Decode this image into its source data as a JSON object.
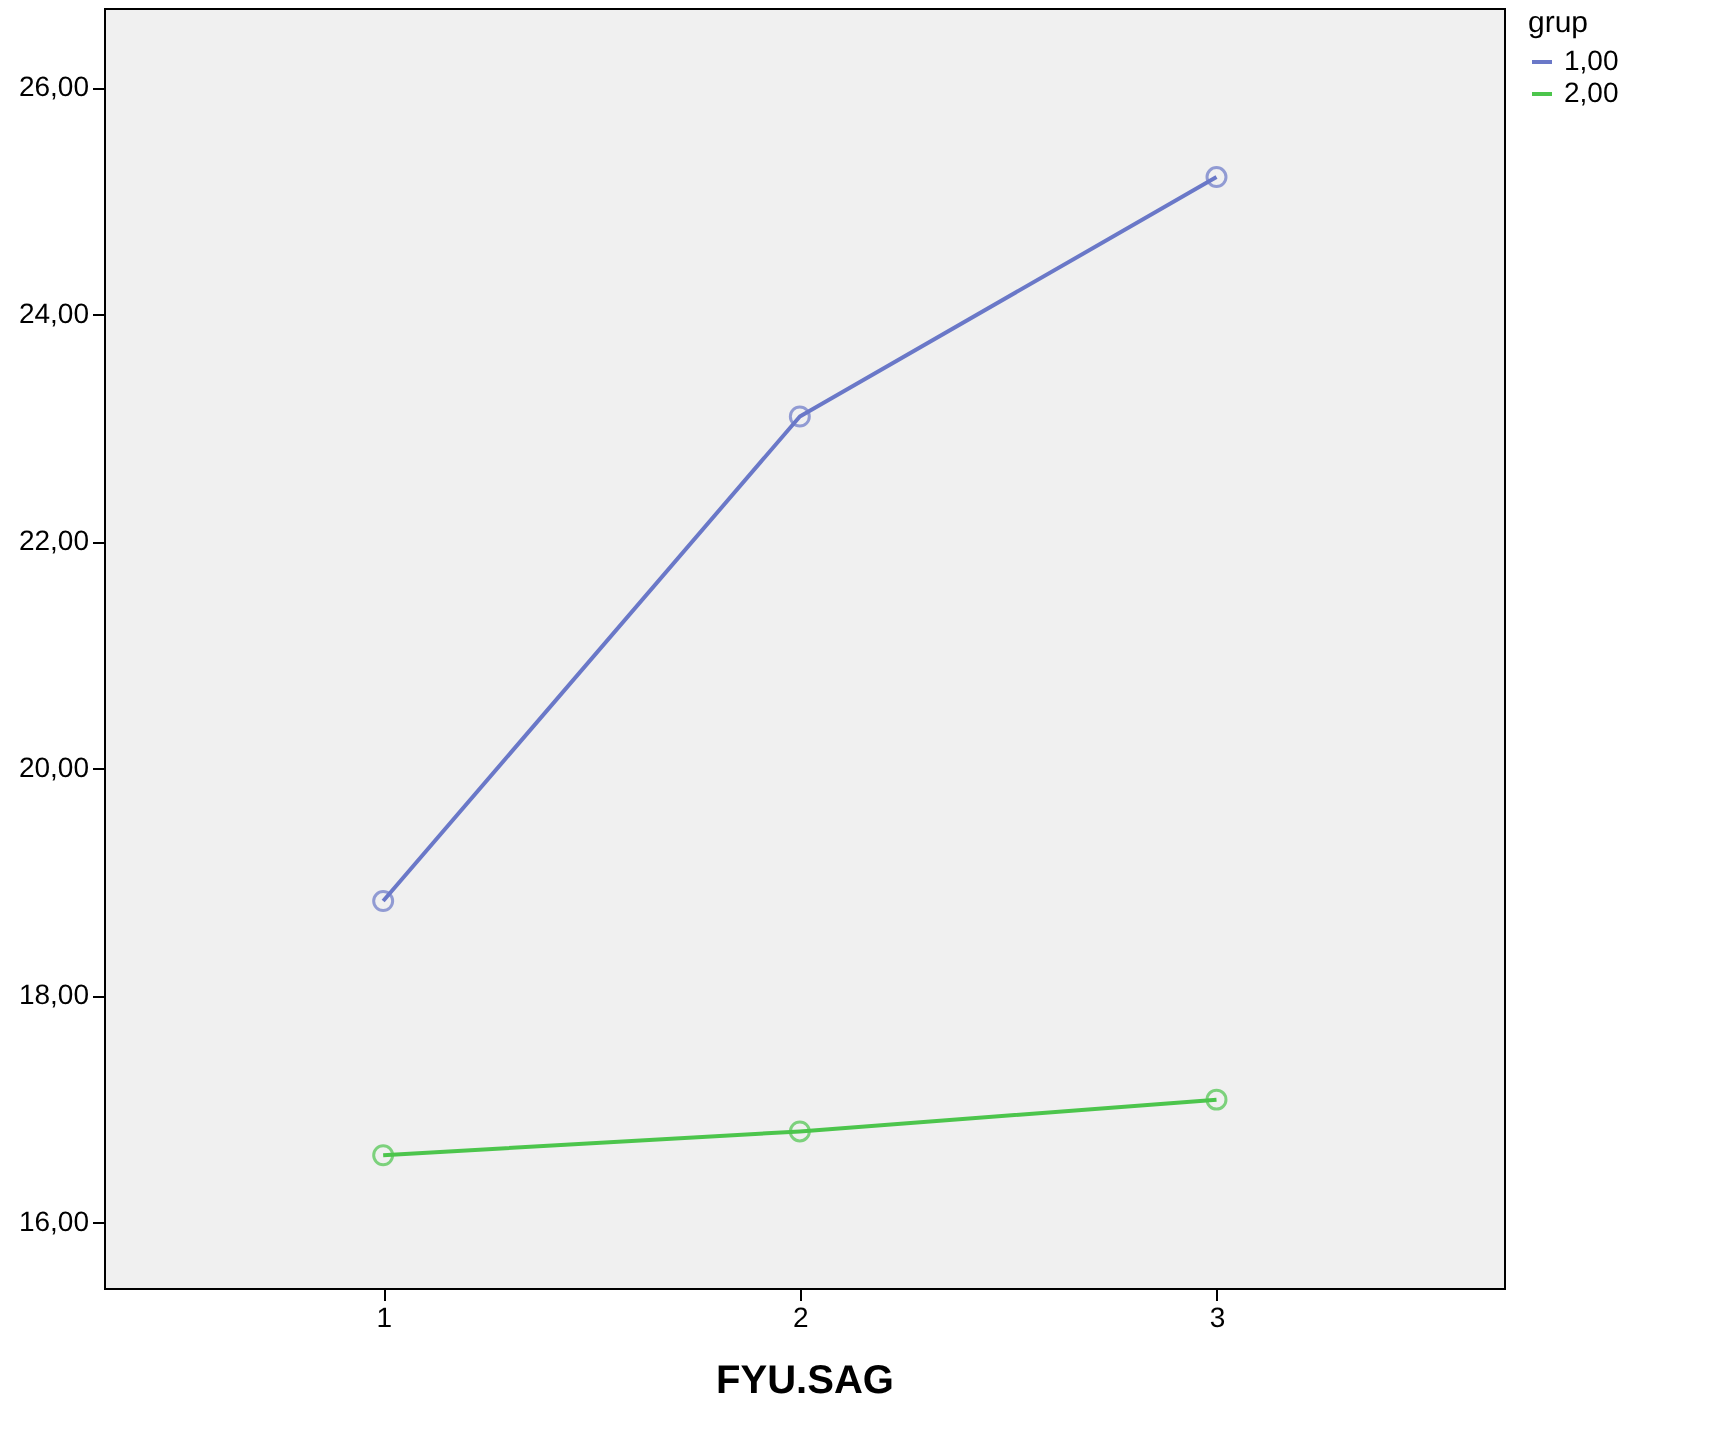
{
  "chart_data": {
    "type": "line",
    "xlabel": "FYU.SAG",
    "legend_title": "grup",
    "x": [
      1,
      2,
      3
    ],
    "series": [
      {
        "name": "1,00",
        "color": "#6a78c8",
        "values": [
          18.83,
          23.1,
          25.21
        ]
      },
      {
        "name": "2,00",
        "color": "#4cc54c",
        "values": [
          16.59,
          16.8,
          17.08
        ]
      }
    ],
    "xlim": [
      0.33,
      3.69
    ],
    "xticks": [
      1,
      2,
      3
    ],
    "ylim": [
      15.42,
      26.7
    ],
    "yticks": [
      {
        "value": 16,
        "label": "16,00"
      },
      {
        "value": 18,
        "label": "18,00"
      },
      {
        "value": 20,
        "label": "20,00"
      },
      {
        "value": 22,
        "label": "22,00"
      },
      {
        "value": 24,
        "label": "24,00"
      },
      {
        "value": 26,
        "label": "26,00"
      }
    ],
    "grid": false,
    "legend": "top right",
    "marker": "circle",
    "line_style": "solid"
  }
}
